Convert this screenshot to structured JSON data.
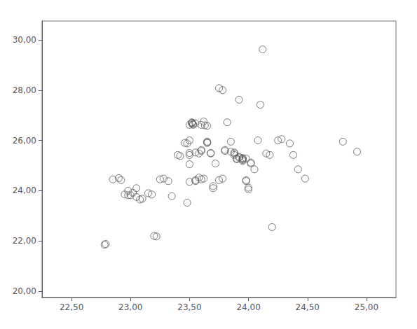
{
  "chart_data": {
    "type": "scatter",
    "x": [
      22.78,
      22.79,
      22.85,
      22.9,
      22.92,
      22.95,
      22.98,
      22.98,
      23.0,
      23.02,
      23.05,
      23.05,
      23.08,
      23.1,
      23.15,
      23.18,
      23.2,
      23.22,
      23.25,
      23.28,
      23.32,
      23.35,
      23.4,
      23.42,
      23.46,
      23.48,
      23.48,
      23.5,
      23.5,
      23.5,
      23.5,
      23.5,
      23.5,
      23.52,
      23.52,
      23.52,
      23.53,
      23.53,
      23.55,
      23.55,
      23.55,
      23.55,
      23.58,
      23.58,
      23.6,
      23.6,
      23.6,
      23.6,
      23.62,
      23.62,
      23.63,
      23.65,
      23.65,
      23.65,
      23.65,
      23.68,
      23.68,
      23.7,
      23.7,
      23.72,
      23.75,
      23.75,
      23.78,
      23.78,
      23.8,
      23.8,
      23.82,
      23.85,
      23.85,
      23.88,
      23.88,
      23.88,
      23.9,
      23.9,
      23.92,
      23.92,
      23.92,
      23.95,
      23.95,
      23.95,
      23.95,
      23.95,
      23.98,
      23.98,
      23.98,
      24.0,
      24.0,
      24.02,
      24.02,
      24.05,
      24.08,
      24.1,
      24.12,
      24.15,
      24.18,
      24.2,
      24.25,
      24.28,
      24.35,
      24.38,
      24.42,
      24.48,
      24.8,
      24.92
    ],
    "values": [
      21.85,
      21.88,
      24.45,
      24.5,
      24.42,
      23.85,
      23.82,
      24.0,
      23.82,
      23.92,
      23.75,
      24.1,
      23.65,
      23.68,
      23.9,
      23.85,
      22.2,
      22.18,
      24.45,
      24.48,
      24.38,
      23.78,
      25.42,
      25.38,
      25.9,
      25.88,
      23.52,
      25.05,
      26.0,
      25.42,
      25.5,
      24.35,
      26.62,
      26.7,
      26.72,
      26.68,
      26.65,
      26.62,
      26.68,
      24.42,
      24.38,
      25.52,
      25.48,
      24.52,
      25.62,
      25.58,
      24.45,
      26.62,
      26.75,
      24.48,
      26.6,
      26.58,
      25.92,
      25.95,
      25.9,
      25.5,
      25.48,
      24.1,
      24.18,
      25.08,
      24.42,
      28.08,
      24.48,
      28.0,
      25.62,
      25.58,
      26.72,
      25.95,
      25.55,
      25.48,
      25.52,
      25.42,
      25.25,
      25.28,
      27.62,
      25.32,
      25.35,
      25.3,
      25.28,
      25.25,
      25.22,
      25.18,
      24.42,
      24.38,
      25.28,
      24.05,
      24.12,
      25.08,
      25.12,
      24.85,
      26.0,
      27.42,
      29.62,
      25.48,
      25.42,
      22.55,
      26.0,
      26.05,
      25.88,
      25.42,
      24.85,
      24.48,
      25.95,
      25.55
    ],
    "xlim": [
      22.25,
      25.25
    ],
    "ylim": [
      19.75,
      30.75
    ],
    "xticks": [
      {
        "value": 22.5,
        "label": "22,50"
      },
      {
        "value": 23.0,
        "label": "23,00"
      },
      {
        "value": 23.5,
        "label": "23,50"
      },
      {
        "value": 24.0,
        "label": "24,00"
      },
      {
        "value": 24.5,
        "label": "24,50"
      },
      {
        "value": 25.0,
        "label": "25,00"
      }
    ],
    "yticks": [
      {
        "value": 20.0,
        "label": "20,00"
      },
      {
        "value": 22.0,
        "label": "22,00"
      },
      {
        "value": 24.0,
        "label": "24,00"
      },
      {
        "value": 26.0,
        "label": "26,00"
      },
      {
        "value": 28.0,
        "label": "28,00"
      },
      {
        "value": 30.0,
        "label": "30,00"
      }
    ],
    "color": "#555555",
    "marker": "circle",
    "grid": false
  }
}
